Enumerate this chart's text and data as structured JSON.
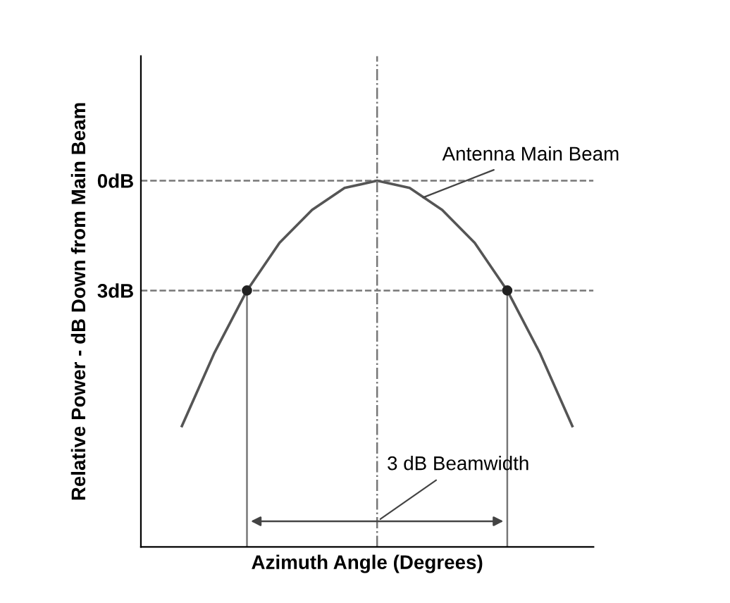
{
  "chart_data": {
    "type": "line",
    "xlabel": "Azimuth Angle (Degrees)",
    "ylabel": "Relative Power - dB Down from Main Beam",
    "categories": [
      null,
      null,
      null,
      null,
      null,
      null,
      null,
      null,
      null,
      null,
      null,
      null,
      null
    ],
    "series": [
      {
        "color": "#555555",
        "values": [
          6.7,
          4.7,
          3,
          1.7,
          0.8,
          0.2,
          0,
          0.2,
          0.8,
          1.7,
          3,
          4.7,
          6.7
        ]
      },
      {
        "type": "scatter",
        "marker": "circle",
        "color": "#222222",
        "values": [
          null,
          null,
          3,
          null,
          null,
          null,
          null,
          null,
          null,
          null,
          3,
          null,
          null
        ]
      }
    ],
    "ylim": [
      10,
      -3.4
    ],
    "yticks": [
      {
        "value": 0,
        "label": "0dB"
      },
      {
        "value": 3,
        "label": "3dB"
      }
    ],
    "tick_labels": "y",
    "grid": false,
    "marker": "none",
    "line_style": "solid",
    "ref_lines": [
      {
        "axis": "y",
        "value": 0,
        "line_style": "dashed",
        "color": "#777777"
      },
      {
        "axis": "y",
        "value": 3,
        "line_style": "dashed",
        "color": "#777777"
      }
    ],
    "annotations": [
      "Antenna Main Beam",
      "3 dB Beamwidth"
    ]
  }
}
